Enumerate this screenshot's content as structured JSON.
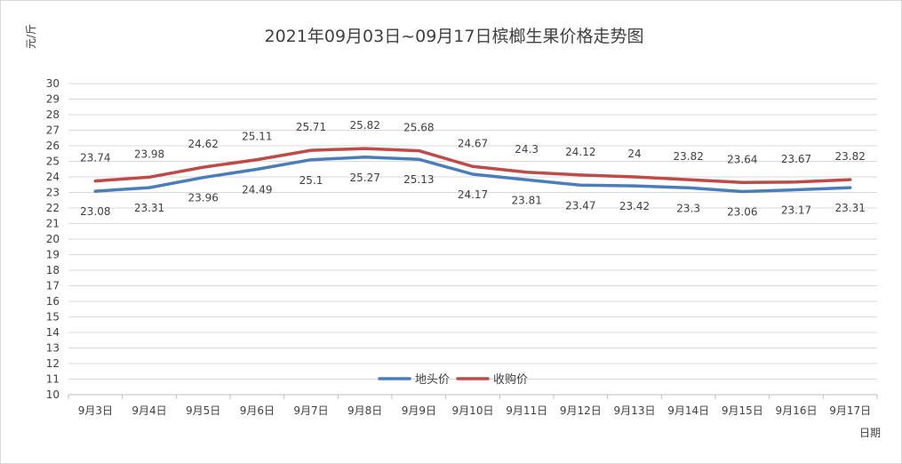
{
  "chart_data": {
    "type": "line",
    "title": "2021年09月03日~09月17日槟榔生果价格走势图",
    "ylabel": "元/斤",
    "xlabel": "日期",
    "ylim": [
      10,
      30
    ],
    "yticks": [
      10,
      11,
      12,
      13,
      14,
      15,
      16,
      17,
      18,
      19,
      20,
      21,
      22,
      23,
      24,
      25,
      26,
      27,
      28,
      29,
      30
    ],
    "grid": true,
    "legend_position": "bottom-center",
    "categories": [
      "9月3日",
      "9月4日",
      "9月5日",
      "9月6日",
      "9月7日",
      "9月8日",
      "9月9日",
      "9月10日",
      "9月11日",
      "9月12日",
      "9月13日",
      "9月14日",
      "9月15日",
      "9月16日",
      "9月17日"
    ],
    "series": [
      {
        "name": "地头价",
        "color": "#4a7ebb",
        "values": [
          23.08,
          23.31,
          23.96,
          24.49,
          25.1,
          25.27,
          25.13,
          24.17,
          23.81,
          23.47,
          23.42,
          23.3,
          23.06,
          23.17,
          23.31
        ],
        "labels": [
          "23.08",
          "23.31",
          "23.96",
          "24.49",
          "25.1",
          "25.27",
          "25.13",
          "24.17",
          "23.81",
          "23.47",
          "23.42",
          "23.3",
          "23.06",
          "23.17",
          "23.31"
        ]
      },
      {
        "name": "收购价",
        "color": "#be4b48",
        "values": [
          23.74,
          23.98,
          24.62,
          25.11,
          25.71,
          25.82,
          25.68,
          24.67,
          24.3,
          24.12,
          24,
          23.82,
          23.64,
          23.67,
          23.82
        ],
        "labels": [
          "23.74",
          "23.98",
          "24.62",
          "25.11",
          "25.71",
          "25.82",
          "25.68",
          "24.67",
          "24.3",
          "24.12",
          "24",
          "23.82",
          "23.64",
          "23.67",
          "23.82"
        ]
      }
    ]
  }
}
